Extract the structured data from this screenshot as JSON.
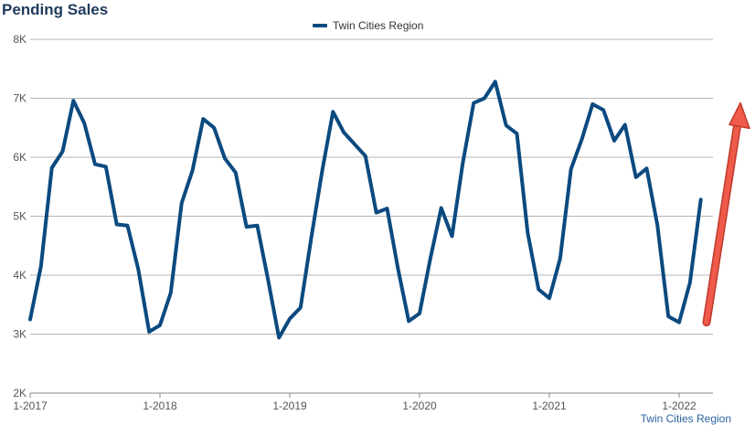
{
  "chart_data": {
    "type": "line",
    "title": "Pending Sales",
    "legend": {
      "entries": [
        "Twin Cities Region"
      ],
      "placement": "top-center"
    },
    "source": "Twin Cities Region",
    "yticks": [
      "2K",
      "3K",
      "4K",
      "5K",
      "6K",
      "7K",
      "8K"
    ],
    "xticks": [
      "1-2017",
      "1-2018",
      "1-2019",
      "1-2020",
      "1-2021",
      "1-2022"
    ],
    "ylim": [
      2000,
      8000
    ],
    "grid": true,
    "colors": {
      "series": "#0b4a80",
      "arrow": "#ef5a4a",
      "grid": "#b5b5b5"
    },
    "series": [
      {
        "name": "Twin Cities Region",
        "x": [
          "2017-01",
          "2017-02",
          "2017-03",
          "2017-04",
          "2017-05",
          "2017-06",
          "2017-07",
          "2017-08",
          "2017-09",
          "2017-10",
          "2017-11",
          "2017-12",
          "2018-01",
          "2018-02",
          "2018-03",
          "2018-04",
          "2018-05",
          "2018-06",
          "2018-07",
          "2018-08",
          "2018-09",
          "2018-10",
          "2018-11",
          "2018-12",
          "2019-01",
          "2019-02",
          "2019-03",
          "2019-04",
          "2019-05",
          "2019-06",
          "2019-07",
          "2019-08",
          "2019-09",
          "2019-10",
          "2019-11",
          "2019-12",
          "2020-01",
          "2020-02",
          "2020-03",
          "2020-04",
          "2020-05",
          "2020-06",
          "2020-07",
          "2020-08",
          "2020-09",
          "2020-10",
          "2020-11",
          "2020-12",
          "2021-01",
          "2021-02",
          "2021-03",
          "2021-04",
          "2021-05",
          "2021-06",
          "2021-07",
          "2021-08",
          "2021-09",
          "2021-10",
          "2021-11",
          "2021-12",
          "2022-01",
          "2022-02",
          "2022-03"
        ],
        "values": [
          3250,
          4150,
          5820,
          6100,
          6960,
          6580,
          5880,
          5840,
          4860,
          4840,
          4100,
          3040,
          3150,
          3700,
          5220,
          5770,
          6650,
          6500,
          5980,
          5740,
          4820,
          4840,
          3920,
          2940,
          3260,
          3450,
          4650,
          5770,
          6770,
          6420,
          6220,
          6020,
          5060,
          5130,
          4120,
          3220,
          3350,
          4280,
          5140,
          4660,
          5900,
          6920,
          7000,
          7280,
          6540,
          6400,
          4720,
          3760,
          3610,
          4280,
          5800,
          6300,
          6900,
          6800,
          6280,
          6550,
          5660,
          5810,
          4840,
          3300,
          3200,
          3870,
          5280
        ]
      }
    ],
    "annotation": {
      "type": "trend-arrow",
      "direction": "up"
    }
  }
}
